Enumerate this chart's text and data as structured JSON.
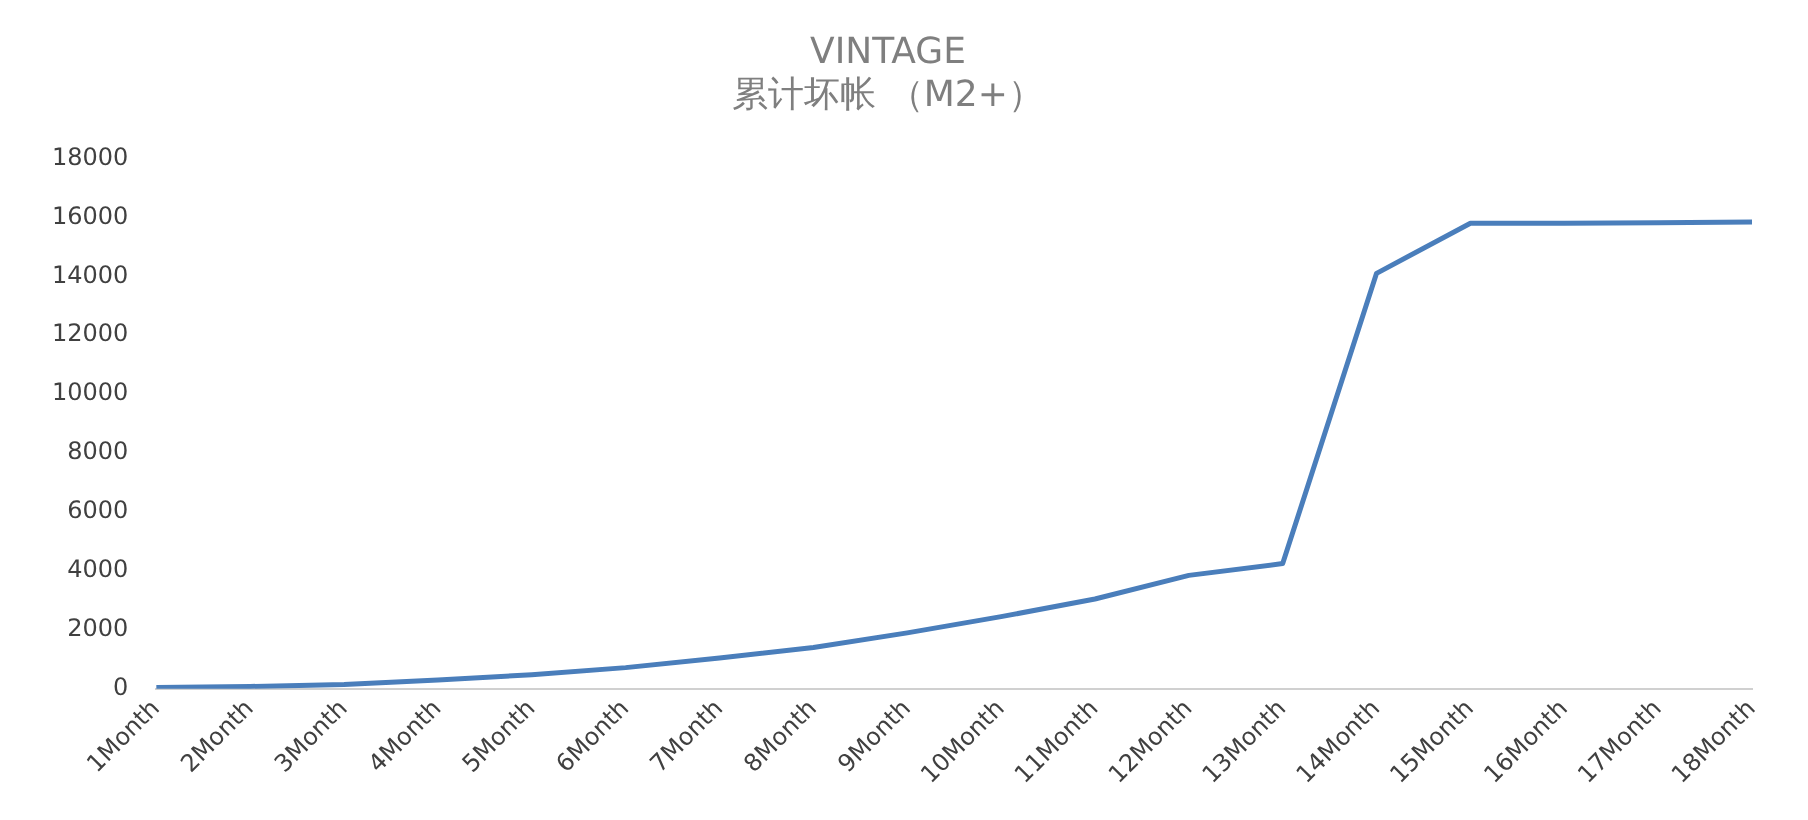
{
  "chart_data": {
    "type": "line",
    "title": "VINTAGE",
    "subtitle": "累计坏帐 （M2+）",
    "categories": [
      "1Month",
      "2Month",
      "3Month",
      "4Month",
      "5Month",
      "6Month",
      "7Month",
      "8Month",
      "9Month",
      "10Month",
      "11Month",
      "12Month",
      "13Month",
      "14Month",
      "15Month",
      "16Month",
      "17Month",
      "18Month"
    ],
    "series": [
      {
        "color": "#4a7ebb",
        "values": [
          50,
          80,
          150,
          300,
          480,
          720,
          1050,
          1400,
          1900,
          2450,
          3050,
          3850,
          4250,
          14100,
          15800,
          15800,
          15820,
          15840
        ]
      }
    ],
    "ylim": [
      0,
      18000
    ],
    "yticks": [
      0,
      2000,
      4000,
      6000,
      8000,
      10000,
      12000,
      14000,
      16000,
      18000
    ],
    "grid": false,
    "legend": false,
    "marker": "none",
    "line_style": "solid"
  }
}
